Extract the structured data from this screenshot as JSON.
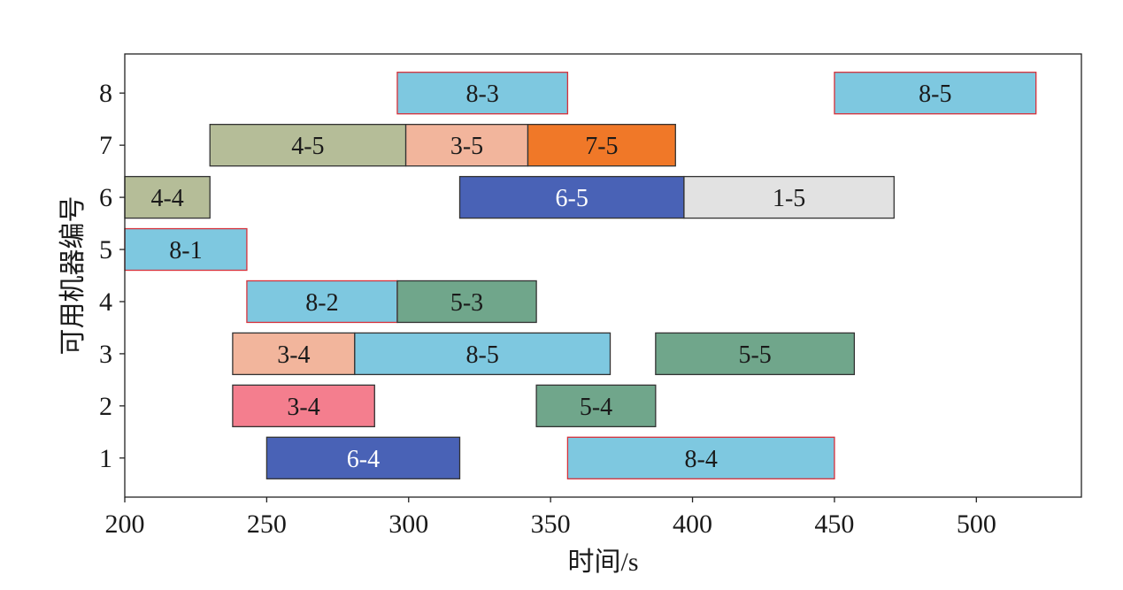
{
  "chart_data": {
    "type": "gantt",
    "xlabel": "时间/s",
    "ylabel": "可用机器编号",
    "xlim": [
      200,
      537
    ],
    "ylim": [
      0.25,
      8.75
    ],
    "xticks": [
      200,
      250,
      300,
      350,
      400,
      450,
      500
    ],
    "yticks": [
      1,
      2,
      3,
      4,
      5,
      6,
      7,
      8
    ],
    "grid": false,
    "tasks": [
      {
        "machine": 8,
        "start": 296,
        "end": 356,
        "label": "8-3",
        "color": "#7ec8e0",
        "edge": "#d6303a",
        "text_color": "#1a1a1a"
      },
      {
        "machine": 8,
        "start": 450,
        "end": 521,
        "label": "8-5",
        "color": "#7ec8e0",
        "edge": "#d6303a",
        "text_color": "#1a1a1a"
      },
      {
        "machine": 7,
        "start": 230,
        "end": 299,
        "label": "4-5",
        "color": "#b5bd98",
        "edge": "#333333",
        "text_color": "#1a1a1a"
      },
      {
        "machine": 7,
        "start": 299,
        "end": 342,
        "label": "3-5",
        "color": "#f2b59c",
        "edge": "#333333",
        "text_color": "#1a1a1a"
      },
      {
        "machine": 7,
        "start": 342,
        "end": 394,
        "label": "7-5",
        "color": "#f07828",
        "edge": "#333333",
        "text_color": "#1a1a1a"
      },
      {
        "machine": 6,
        "start": 200,
        "end": 230,
        "label": "4-4",
        "color": "#b5bd98",
        "edge": "#333333",
        "text_color": "#1a1a1a"
      },
      {
        "machine": 6,
        "start": 318,
        "end": 397,
        "label": "6-5",
        "color": "#4962b6",
        "edge": "#333333",
        "text_color": "#ffffff"
      },
      {
        "machine": 6,
        "start": 397,
        "end": 471,
        "label": "1-5",
        "color": "#e2e2e2",
        "edge": "#333333",
        "text_color": "#1a1a1a"
      },
      {
        "machine": 5,
        "start": 200,
        "end": 243,
        "label": "8-1",
        "color": "#7ec8e0",
        "edge": "#d6303a",
        "text_color": "#1a1a1a"
      },
      {
        "machine": 4,
        "start": 243,
        "end": 296,
        "label": "8-2",
        "color": "#7ec8e0",
        "edge": "#d6303a",
        "text_color": "#1a1a1a"
      },
      {
        "machine": 4,
        "start": 296,
        "end": 345,
        "label": "5-3",
        "color": "#70a68b",
        "edge": "#333333",
        "text_color": "#1a1a1a"
      },
      {
        "machine": 3,
        "start": 238,
        "end": 281,
        "label": "3-4",
        "color": "#f2b59c",
        "edge": "#333333",
        "text_color": "#1a1a1a"
      },
      {
        "machine": 3,
        "start": 281,
        "end": 371,
        "label": "8-5",
        "color": "#7ec8e0",
        "edge": "#333333",
        "text_color": "#1a1a1a"
      },
      {
        "machine": 3,
        "start": 387,
        "end": 457,
        "label": "5-5",
        "color": "#70a68b",
        "edge": "#333333",
        "text_color": "#1a1a1a"
      },
      {
        "machine": 2,
        "start": 238,
        "end": 288,
        "label": "3-4",
        "color": "#f47e8e",
        "edge": "#333333",
        "text_color": "#1a1a1a"
      },
      {
        "machine": 2,
        "start": 345,
        "end": 387,
        "label": "5-4",
        "color": "#70a68b",
        "edge": "#333333",
        "text_color": "#1a1a1a"
      },
      {
        "machine": 1,
        "start": 250,
        "end": 318,
        "label": "6-4",
        "color": "#4962b6",
        "edge": "#333333",
        "text_color": "#ffffff"
      },
      {
        "machine": 1,
        "start": 356,
        "end": 450,
        "label": "8-4",
        "color": "#7ec8e0",
        "edge": "#d6303a",
        "text_color": "#1a1a1a"
      }
    ]
  }
}
